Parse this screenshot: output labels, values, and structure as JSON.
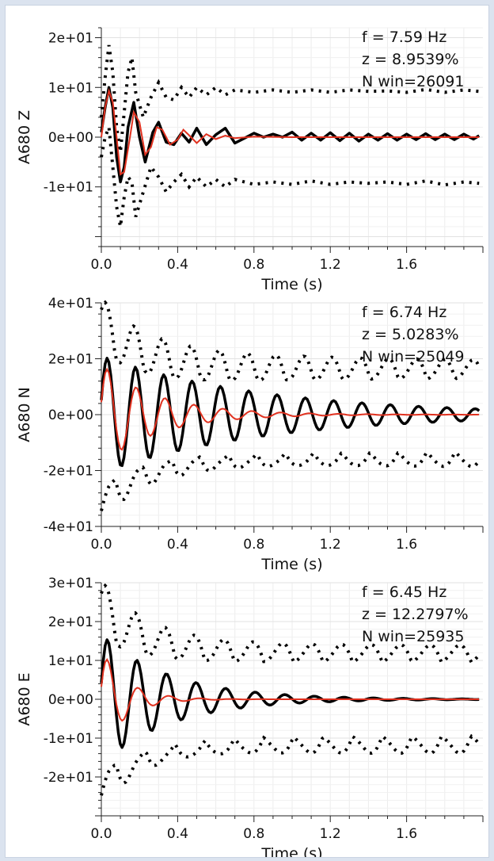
{
  "chart_data": [
    {
      "type": "line",
      "ylabel": "A680 Z",
      "xlabel": "Time (s)",
      "xlim": [
        0,
        2.0
      ],
      "ylim": [
        -22,
        22
      ],
      "x_ticks": [
        0.0,
        0.4,
        0.8,
        1.2,
        1.6
      ],
      "x_tick_labels": [
        "0.0",
        "0.4",
        "0.8",
        "1.2",
        "1.6"
      ],
      "y_ticks": [
        20,
        10,
        0,
        -10
      ],
      "y_tick_labels": [
        "2e+01",
        "1e+01",
        "0e+00",
        "-1e+01"
      ],
      "annotations": [
        "f = 7.59 Hz",
        "z = 8.9539%",
        "N win=26091"
      ],
      "grid": true,
      "model": {
        "f_hz": 7.59,
        "damping_pct": 8.9539,
        "peak": 10,
        "model_peak": 9.3,
        "model_f_hz": 7.65,
        "envelope_peak": 18.5,
        "envelope_floor": 9.2
      },
      "series": [
        {
          "style": "black-solid",
          "color": "#000000",
          "points": [
            [
              0.0,
              1.0
            ],
            [
              0.02,
              6.0
            ],
            [
              0.04,
              10.0
            ],
            [
              0.06,
              6.0
            ],
            [
              0.08,
              -4.0
            ],
            [
              0.1,
              -9.0
            ],
            [
              0.12,
              -6.0
            ],
            [
              0.14,
              2.0
            ],
            [
              0.17,
              7.0
            ],
            [
              0.2,
              0.0
            ],
            [
              0.23,
              -5.0
            ],
            [
              0.27,
              1.0
            ],
            [
              0.3,
              3.0
            ],
            [
              0.34,
              -1.0
            ],
            [
              0.38,
              -1.5
            ],
            [
              0.42,
              0.8
            ],
            [
              0.46,
              -1.0
            ],
            [
              0.5,
              1.8
            ],
            [
              0.55,
              -1.5
            ],
            [
              0.6,
              0.5
            ],
            [
              0.65,
              1.8
            ],
            [
              0.7,
              -1.2
            ],
            [
              0.75,
              -0.2
            ],
            [
              0.8,
              0.8
            ],
            [
              0.85,
              0.0
            ],
            [
              0.9,
              0.6
            ],
            [
              0.95,
              0.0
            ],
            [
              1.0,
              1.0
            ],
            [
              1.05,
              -0.6
            ],
            [
              1.1,
              0.8
            ],
            [
              1.15,
              -0.6
            ],
            [
              1.2,
              0.9
            ],
            [
              1.25,
              -0.7
            ],
            [
              1.3,
              0.8
            ],
            [
              1.35,
              -0.8
            ],
            [
              1.4,
              0.6
            ],
            [
              1.45,
              -0.6
            ],
            [
              1.5,
              0.7
            ],
            [
              1.55,
              -0.6
            ],
            [
              1.6,
              0.6
            ],
            [
              1.65,
              -0.5
            ],
            [
              1.7,
              0.7
            ],
            [
              1.75,
              -0.5
            ],
            [
              1.8,
              0.6
            ],
            [
              1.85,
              -0.5
            ],
            [
              1.9,
              0.6
            ],
            [
              1.95,
              -0.4
            ],
            [
              1.98,
              0.3
            ]
          ]
        },
        {
          "style": "red-solid",
          "color": "#e0311f",
          "points": [
            [
              0.0,
              0.0
            ],
            [
              0.02,
              6.0
            ],
            [
              0.04,
              9.3
            ],
            [
              0.06,
              7.0
            ],
            [
              0.08,
              0.0
            ],
            [
              0.1,
              -7.5
            ],
            [
              0.12,
              -7.0
            ],
            [
              0.15,
              0.0
            ],
            [
              0.17,
              5.0
            ],
            [
              0.2,
              3.0
            ],
            [
              0.23,
              -3.5
            ],
            [
              0.26,
              -2.0
            ],
            [
              0.29,
              2.0
            ],
            [
              0.32,
              1.5
            ],
            [
              0.36,
              -1.5
            ],
            [
              0.4,
              -0.5
            ],
            [
              0.43,
              1.5
            ],
            [
              0.47,
              0.0
            ],
            [
              0.5,
              -1.2
            ],
            [
              0.55,
              0.6
            ],
            [
              0.6,
              -0.4
            ],
            [
              0.65,
              0.3
            ],
            [
              0.7,
              -0.2
            ],
            [
              0.8,
              0.1
            ],
            [
              1.0,
              0.0
            ],
            [
              1.98,
              0.0
            ]
          ]
        },
        {
          "style": "black-dotted-upper",
          "color": "#000000",
          "points": [
            [
              0.0,
              4.0
            ],
            [
              0.02,
              12.0
            ],
            [
              0.04,
              18.5
            ],
            [
              0.06,
              13.0
            ],
            [
              0.08,
              2.0
            ],
            [
              0.1,
              -3.0
            ],
            [
              0.12,
              5.0
            ],
            [
              0.14,
              13.0
            ],
            [
              0.16,
              16.0
            ],
            [
              0.18,
              9.0
            ],
            [
              0.22,
              4.0
            ],
            [
              0.26,
              8.0
            ],
            [
              0.3,
              11.0
            ],
            [
              0.34,
              8.0
            ],
            [
              0.38,
              7.5
            ],
            [
              0.42,
              10.0
            ],
            [
              0.46,
              8.0
            ],
            [
              0.5,
              10.0
            ],
            [
              0.55,
              8.5
            ],
            [
              0.6,
              10.0
            ],
            [
              0.65,
              8.5
            ],
            [
              0.7,
              9.5
            ],
            [
              0.8,
              9.0
            ],
            [
              0.9,
              9.5
            ],
            [
              1.0,
              9.0
            ],
            [
              1.1,
              9.5
            ],
            [
              1.2,
              9.0
            ],
            [
              1.3,
              9.5
            ],
            [
              1.4,
              9.2
            ],
            [
              1.5,
              9.3
            ],
            [
              1.6,
              9.0
            ],
            [
              1.7,
              9.6
            ],
            [
              1.8,
              9.0
            ],
            [
              1.9,
              9.5
            ],
            [
              1.98,
              9.2
            ]
          ]
        },
        {
          "style": "black-dotted-lower",
          "color": "#000000",
          "points": [
            [
              0.0,
              -4.0
            ],
            [
              0.02,
              0.0
            ],
            [
              0.04,
              2.0
            ],
            [
              0.06,
              -6.0
            ],
            [
              0.08,
              -14.0
            ],
            [
              0.1,
              -18.0
            ],
            [
              0.12,
              -12.0
            ],
            [
              0.14,
              -8.0
            ],
            [
              0.16,
              -9.0
            ],
            [
              0.18,
              -16.0
            ],
            [
              0.22,
              -11.0
            ],
            [
              0.26,
              -6.0
            ],
            [
              0.3,
              -8.0
            ],
            [
              0.34,
              -11.0
            ],
            [
              0.38,
              -9.0
            ],
            [
              0.42,
              -7.5
            ],
            [
              0.46,
              -10.0
            ],
            [
              0.5,
              -8.0
            ],
            [
              0.55,
              -10.0
            ],
            [
              0.6,
              -8.5
            ],
            [
              0.65,
              -10.0
            ],
            [
              0.7,
              -8.5
            ],
            [
              0.8,
              -9.5
            ],
            [
              0.9,
              -9.0
            ],
            [
              1.0,
              -9.5
            ],
            [
              1.1,
              -8.8
            ],
            [
              1.2,
              -9.5
            ],
            [
              1.3,
              -9.0
            ],
            [
              1.4,
              -9.3
            ],
            [
              1.5,
              -9.0
            ],
            [
              1.6,
              -9.5
            ],
            [
              1.7,
              -8.8
            ],
            [
              1.8,
              -9.6
            ],
            [
              1.9,
              -9.0
            ],
            [
              1.98,
              -9.3
            ]
          ]
        }
      ]
    },
    {
      "type": "line",
      "ylabel": "A680 N",
      "xlabel": "Time (s)",
      "xlim": [
        0,
        2.0
      ],
      "ylim": [
        -40,
        40
      ],
      "x_ticks": [
        0.0,
        0.4,
        0.8,
        1.2,
        1.6
      ],
      "x_tick_labels": [
        "0.0",
        "0.4",
        "0.8",
        "1.2",
        "1.6"
      ],
      "y_ticks": [
        40,
        20,
        0,
        -20,
        -40
      ],
      "y_tick_labels": [
        "4e+01",
        "2e+01",
        "0e+00",
        "-2e+01",
        "-4e+01"
      ],
      "annotations": [
        "f = 6.74 Hz",
        "z = 5.0283%",
        "N win=25049"
      ],
      "grid": true,
      "model": {
        "f_hz": 6.74,
        "damping_pct": 5.0283,
        "peak": 20,
        "model_peak": 18,
        "model_f_hz": 6.6,
        "envelope_peak": 36,
        "envelope_floor": 18.5
      }
    },
    {
      "type": "line",
      "ylabel": "A680 E",
      "xlabel": "Time (s)",
      "xlim": [
        0,
        2.0
      ],
      "ylim": [
        -30,
        30
      ],
      "x_ticks": [
        0.0,
        0.4,
        0.8,
        1.2,
        1.6
      ],
      "x_tick_labels": [
        "0.0",
        "0.4",
        "0.8",
        "1.2",
        "1.6"
      ],
      "y_ticks": [
        30,
        20,
        10,
        0,
        -10,
        -20
      ],
      "y_tick_labels": [
        "3e+01",
        "2e+01",
        "1e+01",
        "0e+00",
        "-1e+01",
        "-2e+01"
      ],
      "annotations": [
        "f = 6.45 Hz",
        "z = 12.2797%",
        "N win=25935"
      ],
      "grid": true,
      "model": {
        "f_hz": 6.45,
        "damping_pct": 12.2797,
        "peak": 15,
        "model_peak": 13,
        "model_f_hz": 6.2,
        "envelope_peak": 26,
        "envelope_floor": 13.5
      }
    }
  ]
}
